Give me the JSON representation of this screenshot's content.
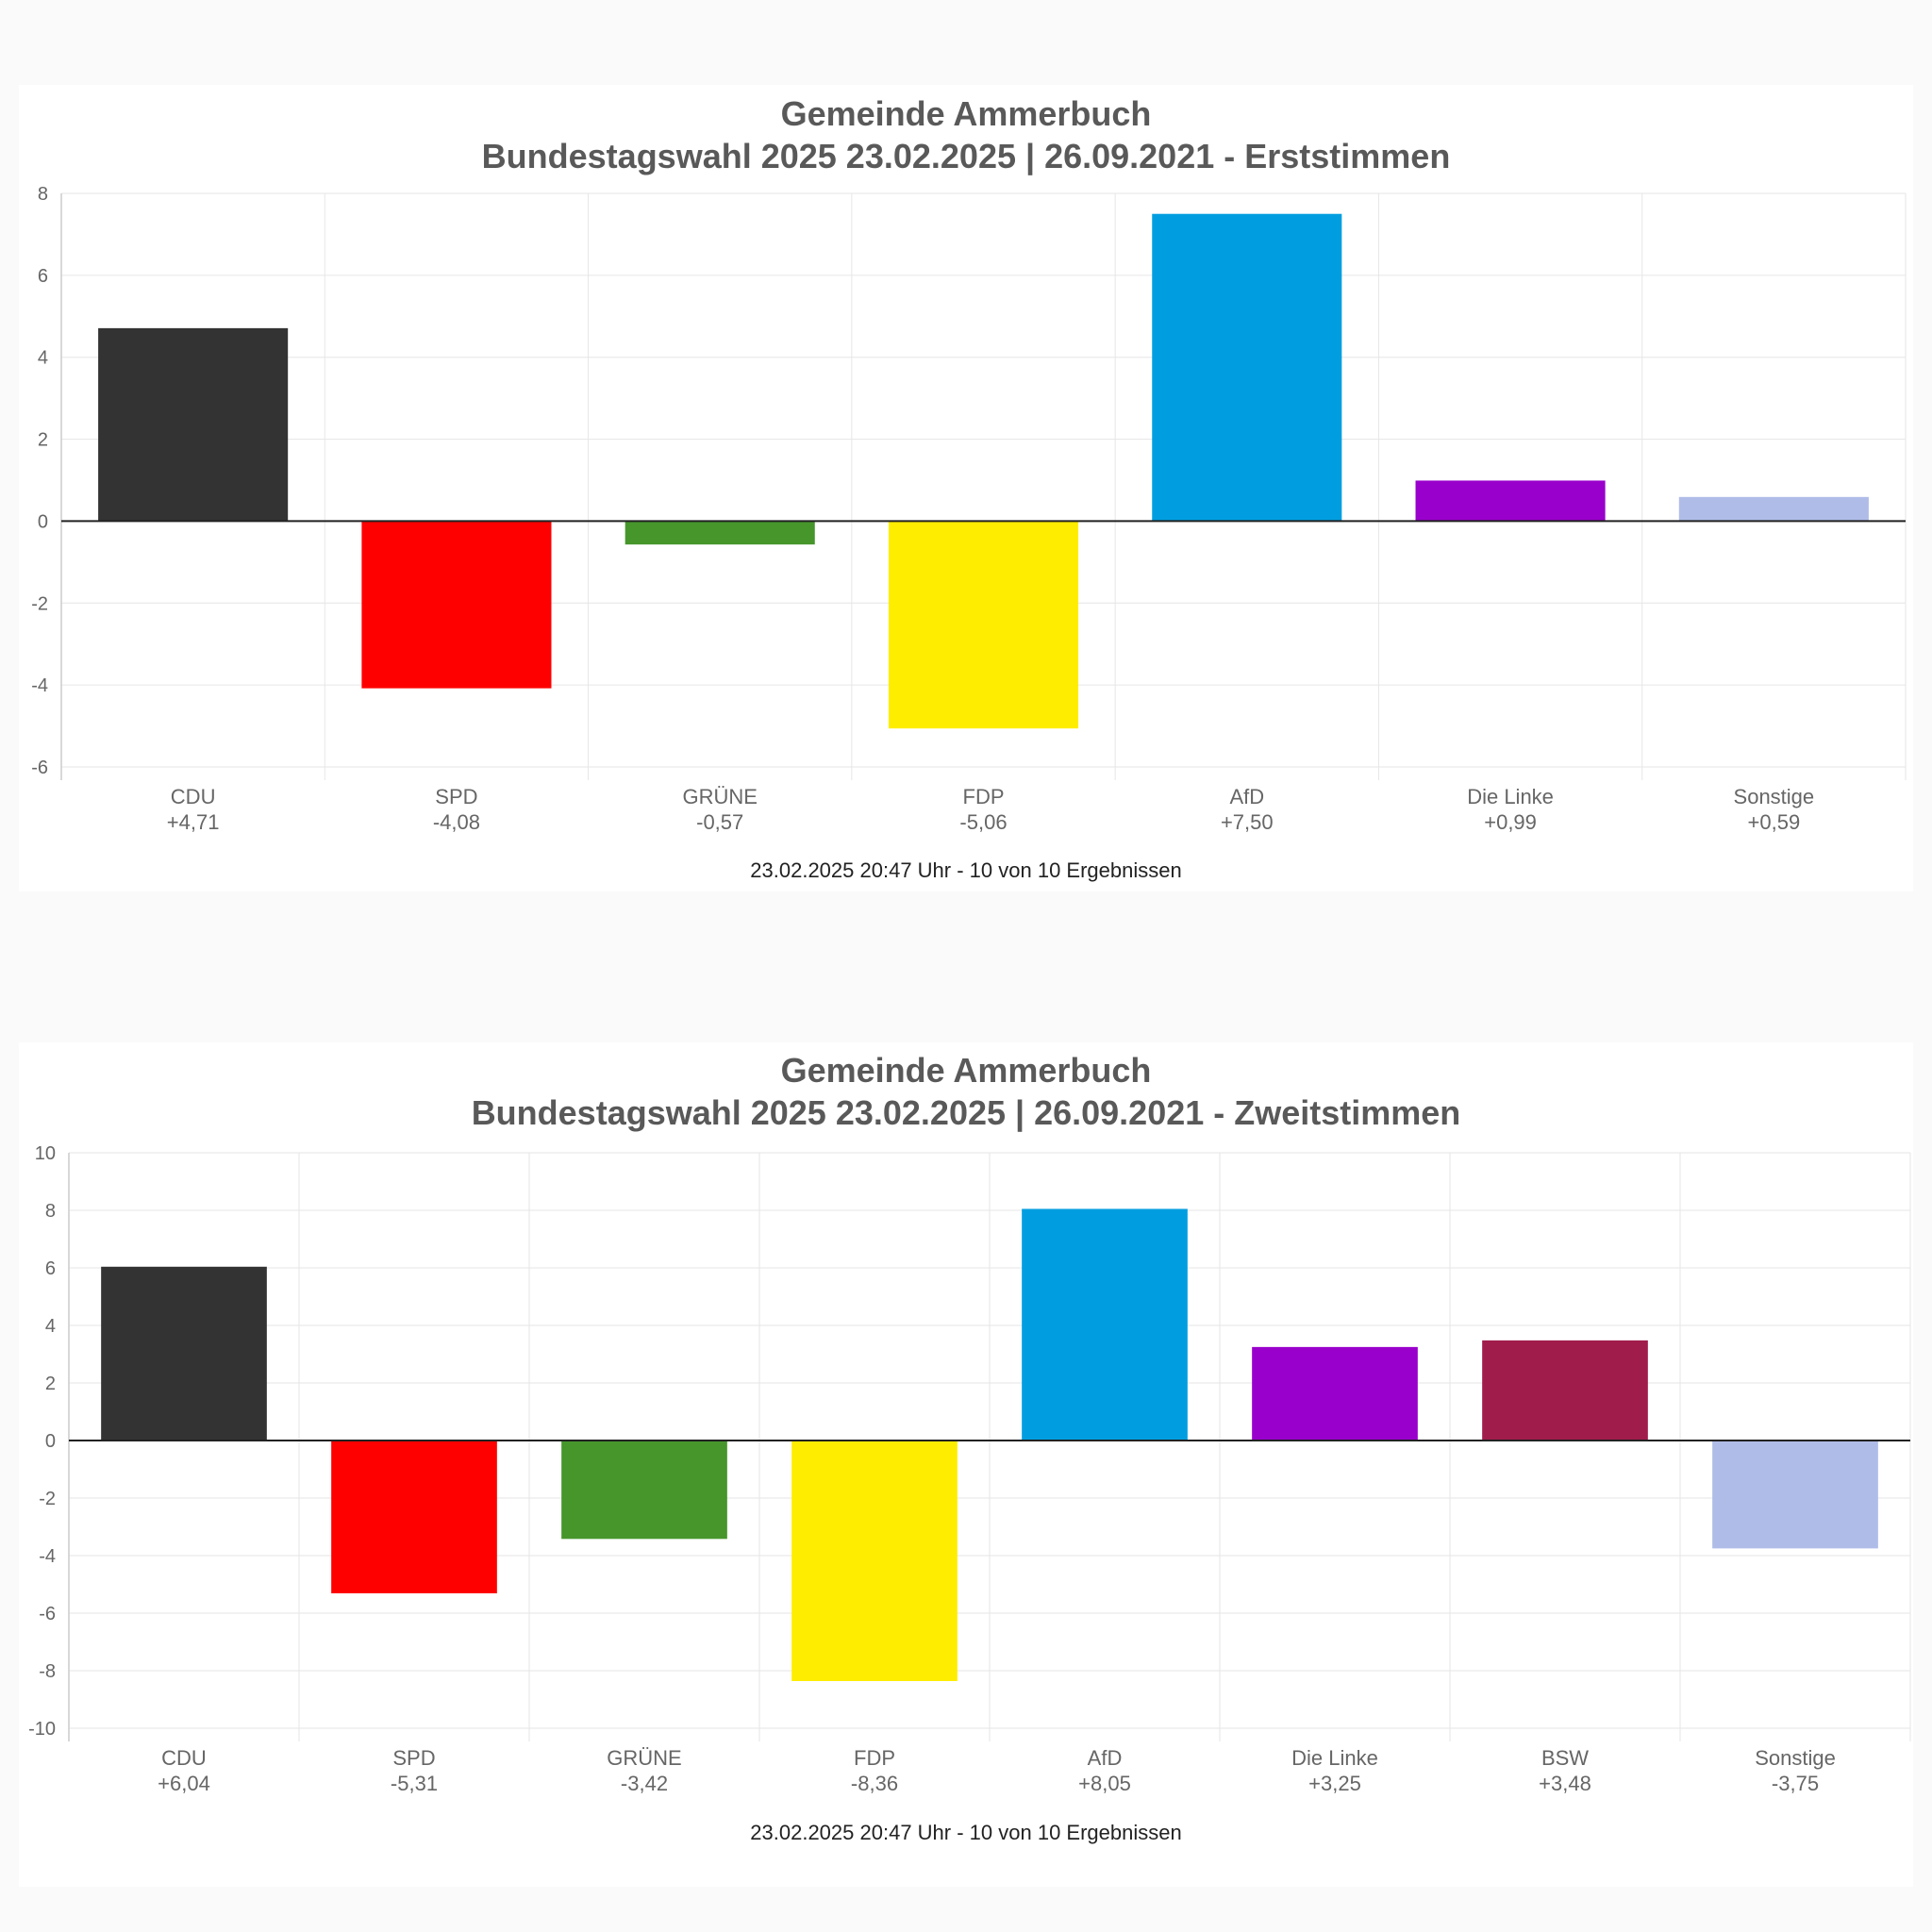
{
  "chart_data": [
    {
      "type": "bar",
      "title": [
        "Gemeinde Ammerbuch",
        "Bundestagswahl 2025 23.02.2025  | 26.09.2021 - Erststimmen"
      ],
      "categories": [
        "CDU",
        "SPD",
        "GRÜNE",
        "FDP",
        "AfD",
        "Die Linke",
        "Sonstige"
      ],
      "value_labels": [
        "+4,71",
        "-4,08",
        "-0,57",
        "-5,06",
        "+7,50",
        "+0,99",
        "+0,59"
      ],
      "values": [
        4.71,
        -4.08,
        -0.57,
        -5.06,
        7.5,
        0.99,
        0.59
      ],
      "colors": [
        "#333333",
        "#ff0000",
        "#46962b",
        "#ffed00",
        "#009ee0",
        "#9900cc",
        "#b0bce8"
      ],
      "ylim": [
        -6,
        8
      ],
      "yticks": [
        8,
        6,
        4,
        2,
        0,
        -2,
        -4,
        -6
      ],
      "grid": true,
      "footer": "23.02.2025 20:47 Uhr - 10 von 10 Ergebnissen"
    },
    {
      "type": "bar",
      "title": [
        "Gemeinde Ammerbuch",
        "Bundestagswahl 2025 23.02.2025  | 26.09.2021 - Zweitstimmen"
      ],
      "categories": [
        "CDU",
        "SPD",
        "GRÜNE",
        "FDP",
        "AfD",
        "Die Linke",
        "BSW",
        "Sonstige"
      ],
      "value_labels": [
        "+6,04",
        "-5,31",
        "-3,42",
        "-8,36",
        "+8,05",
        "+3,25",
        "+3,48",
        "-3,75"
      ],
      "values": [
        6.04,
        -5.31,
        -3.42,
        -8.36,
        8.05,
        3.25,
        3.48,
        -3.75
      ],
      "colors": [
        "#333333",
        "#ff0000",
        "#46962b",
        "#ffed00",
        "#009ee0",
        "#9900cc",
        "#a01c4b",
        "#b0bce8"
      ],
      "ylim": [
        -10,
        10
      ],
      "yticks": [
        10,
        8,
        6,
        4,
        2,
        0,
        -2,
        -4,
        -6,
        -8,
        -10
      ],
      "grid": true,
      "footer": "23.02.2025 20:47 Uhr - 10 von 10 Ergebnissen"
    }
  ]
}
